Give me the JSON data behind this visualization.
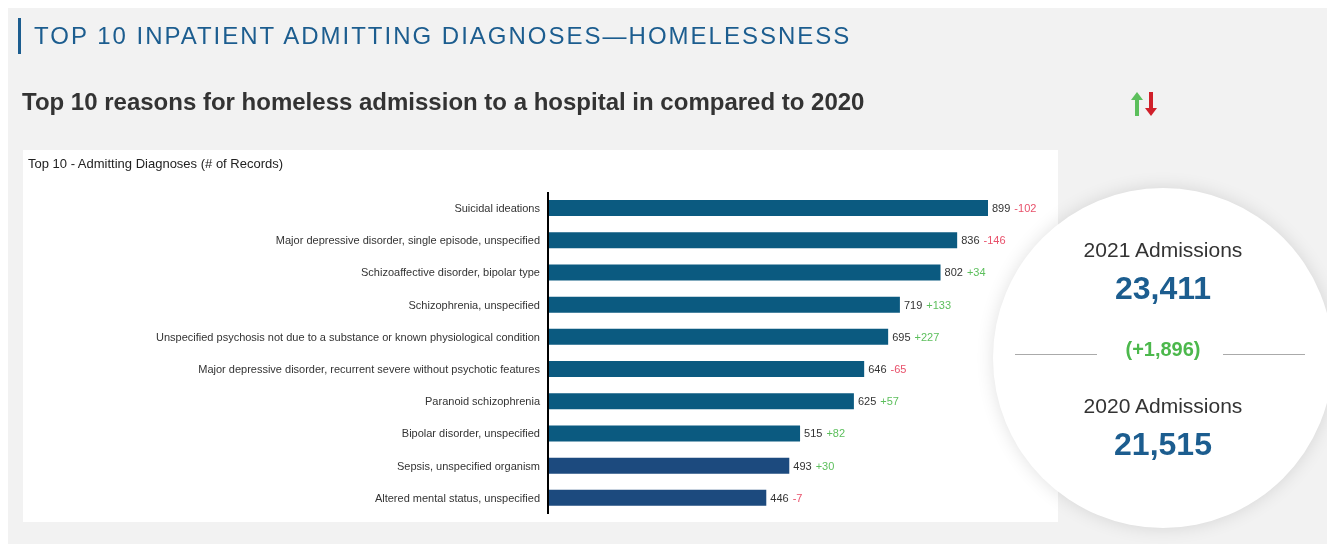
{
  "chart_data": [
    {
      "type": "bar",
      "orientation": "horizontal",
      "title": "TOP 10 INPATIENT ADMITTING DIAGNOSES—HOMELESSNESS",
      "subtitle": "Top 10 reasons for homeless admission to a hospital in compared to 2020",
      "annotations": [
        "Top 10 - Admitting Diagnoses (# of Records)"
      ],
      "categories": [
        "Suicidal ideations",
        "Major depressive disorder, single episode, unspecified",
        "Schizoaffective disorder, bipolar type",
        "Schizophrenia, unspecified",
        "Unspecified psychosis not due to a substance or known physiological condition",
        "Major depressive disorder, recurrent severe without psychotic features",
        "Paranoid schizophrenia",
        "Bipolar disorder, unspecified",
        "Sepsis, unspecified organism",
        "Altered mental status, unspecified"
      ],
      "values": [
        899,
        836,
        802,
        719,
        695,
        646,
        625,
        515,
        493,
        446
      ],
      "colors": [
        "#0b5a80",
        "#0b5a80",
        "#0b5a80",
        "#0b5a80",
        "#0b5a80",
        "#0b5a80",
        "#0b5a80",
        "#0b5a80",
        "#1c4a7e",
        "#1c4a7e"
      ],
      "value_labels": [
        "899 -102",
        "836 -146",
        "802 +34",
        "719 +133",
        "695 +227",
        "646 -65",
        "625 +57",
        "515 +82",
        "493 +30",
        "446 -7"
      ]
    },
    {
      "type": "other",
      "annotations": [
        "2021 Admissions",
        "23,411",
        "(+1,896)",
        "2020 Admissions",
        "21,515"
      ]
    }
  ]
}
